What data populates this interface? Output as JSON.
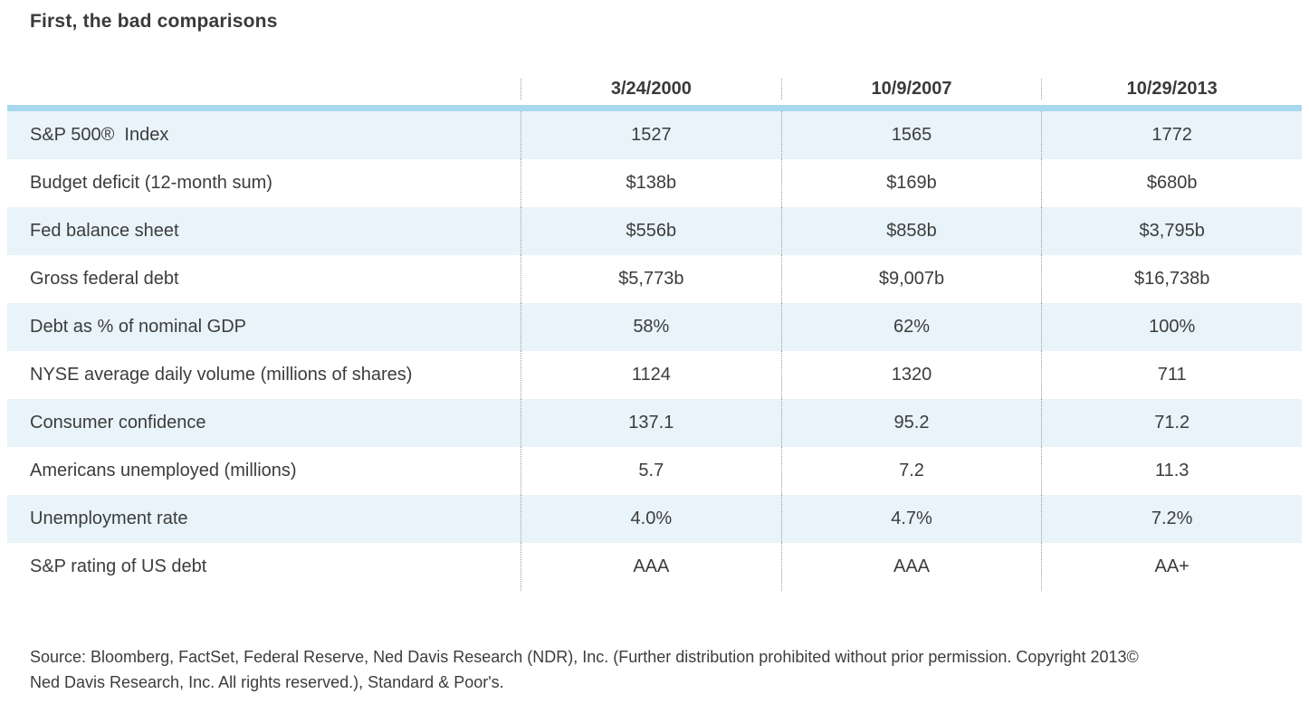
{
  "title": "First, the bad comparisons",
  "chart_data": {
    "type": "table",
    "columns": [
      "3/24/2000",
      "10/9/2007",
      "10/29/2013"
    ],
    "rows": [
      {
        "label": "S&P 500®  Index",
        "values": [
          "1527",
          "1565",
          "1772"
        ]
      },
      {
        "label": "Budget deficit (12-month sum)",
        "values": [
          "$138b",
          "$169b",
          "$680b"
        ]
      },
      {
        "label": "Fed balance sheet",
        "values": [
          "$556b",
          "$858b",
          "$3,795b"
        ]
      },
      {
        "label": "Gross federal debt",
        "values": [
          "$5,773b",
          "$9,007b",
          "$16,738b"
        ]
      },
      {
        "label": "Debt as % of nominal GDP",
        "values": [
          "58%",
          "62%",
          "100%"
        ]
      },
      {
        "label": "NYSE average daily volume (millions of shares)",
        "values": [
          "1124",
          "1320",
          "711"
        ]
      },
      {
        "label": "Consumer confidence",
        "values": [
          "137.1",
          "95.2",
          "71.2"
        ]
      },
      {
        "label": "Americans unemployed (millions)",
        "values": [
          "5.7",
          "7.2",
          "11.3"
        ]
      },
      {
        "label": "Unemployment rate",
        "values": [
          "4.0%",
          "4.7%",
          "7.2%"
        ]
      },
      {
        "label": "S&P rating of US debt",
        "values": [
          "AAA",
          "AAA",
          "AA+"
        ]
      }
    ]
  },
  "source": {
    "line1": "Source: Bloomberg, FactSet, Federal Reserve, Ned Davis Research (NDR), Inc. (Further distribution prohibited without prior permission. Copyright 2013©",
    "line2": "Ned Davis Research, Inc. All rights reserved.), Standard & Poor's."
  },
  "colors": {
    "alt_row": "#e8f4fa",
    "header_bar": "#a8d8ef",
    "text": "#3c3c3c",
    "dotted_divider": "#9a9a9a"
  }
}
